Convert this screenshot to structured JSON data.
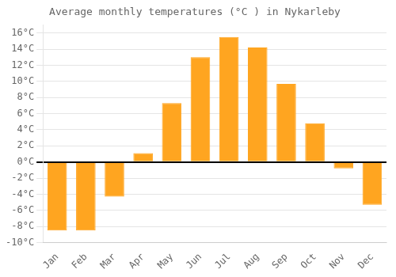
{
  "chart_data": {
    "type": "bar",
    "title": "Average monthly temperatures (°C ) in Nykarleby",
    "categories": [
      "Jan",
      "Feb",
      "Mar",
      "Apr",
      "May",
      "Jun",
      "Jul",
      "Aug",
      "Sep",
      "Oct",
      "Nov",
      "Dec"
    ],
    "values": [
      -8.5,
      -8.5,
      -4.3,
      1.1,
      7.3,
      13.0,
      15.5,
      14.2,
      9.7,
      4.8,
      -0.8,
      -5.3
    ],
    "color": "#FFA520",
    "ylim": [
      -10,
      17
    ],
    "yticks": [
      {
        "value": -10,
        "label": "-10°C"
      },
      {
        "value": -8,
        "label": "-8°C"
      },
      {
        "value": -6,
        "label": "-6°C"
      },
      {
        "value": -4,
        "label": "-4°C"
      },
      {
        "value": -2,
        "label": "-2°C"
      },
      {
        "value": 0,
        "label": "0°C"
      },
      {
        "value": 2,
        "label": "2°C"
      },
      {
        "value": 4,
        "label": "4°C"
      },
      {
        "value": 6,
        "label": "6°C"
      },
      {
        "value": 8,
        "label": "8°C"
      },
      {
        "value": 10,
        "label": "10°C"
      },
      {
        "value": 12,
        "label": "12°C"
      },
      {
        "value": 14,
        "label": "14°C"
      },
      {
        "value": 16,
        "label": "16°C"
      }
    ],
    "grid": true
  }
}
